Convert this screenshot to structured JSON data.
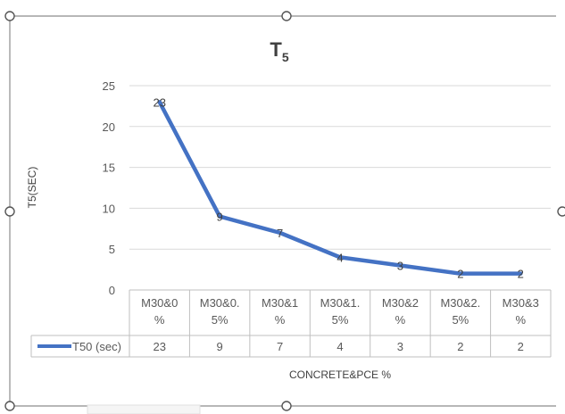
{
  "chart_data": {
    "type": "line",
    "title": "T",
    "title_subscript": "5",
    "ylabel": "T5(SEC)",
    "xlabel": "CONCRETE&PCE %",
    "ylim": [
      0,
      25
    ],
    "yticks": [
      "0",
      "5",
      "10",
      "15",
      "20",
      "25"
    ],
    "grid": true,
    "categories": [
      [
        "M30&0",
        "%"
      ],
      [
        "M30&0.",
        "5%"
      ],
      [
        "M30&1",
        "%"
      ],
      [
        "M30&1.",
        "5%"
      ],
      [
        "M30&2",
        "%"
      ],
      [
        "M30&2.",
        "5%"
      ],
      [
        "M30&3",
        "%"
      ]
    ],
    "series": [
      {
        "name": "T50 (sec)",
        "values": [
          23,
          9,
          7,
          4,
          3,
          2,
          2
        ],
        "color": "#4472C4"
      }
    ],
    "data_labels": [
      "23",
      "9",
      "7",
      "4",
      "3",
      "2",
      "2"
    ],
    "legend_placement": "data-table-left"
  }
}
